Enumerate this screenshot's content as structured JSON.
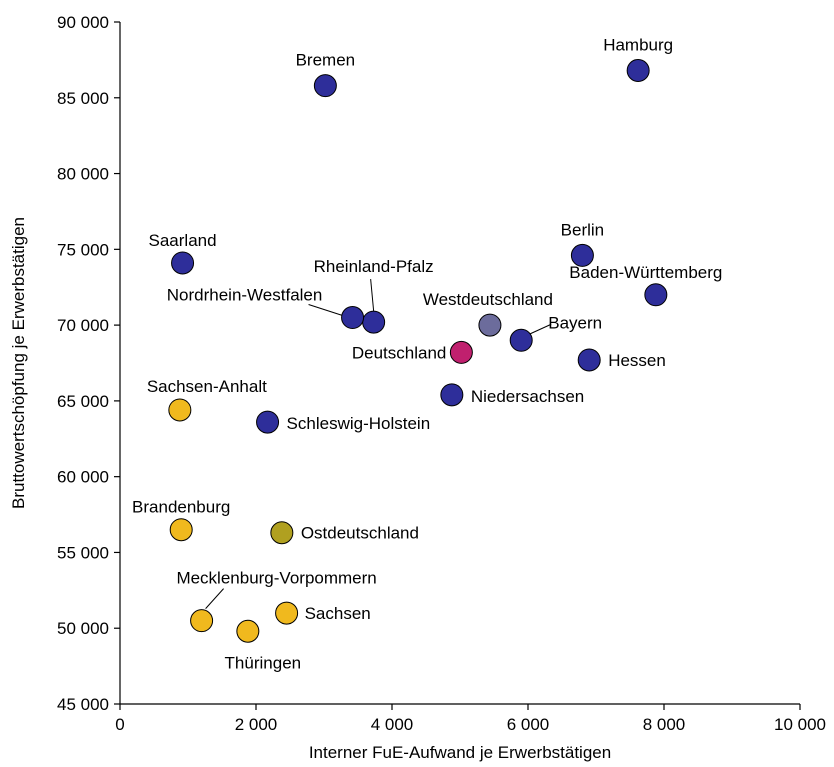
{
  "chart_data": {
    "type": "scatter",
    "title": "",
    "xlabel": "Interner FuE-Aufwand je Erwerbstätigen",
    "ylabel": "Bruttowertschöpfung je Erwerbstätigen",
    "xlim": [
      0,
      10000
    ],
    "ylim": [
      45000,
      90000
    ],
    "x_ticks": [
      0,
      2000,
      4000,
      6000,
      8000,
      10000
    ],
    "x_tick_labels": [
      "0",
      "2 000",
      "4 000",
      "6 000",
      "8 000",
      "10 000"
    ],
    "y_ticks": [
      45000,
      50000,
      55000,
      60000,
      65000,
      70000,
      75000,
      80000,
      85000,
      90000
    ],
    "y_tick_labels": [
      "45 000",
      "50 000",
      "55 000",
      "60 000",
      "65 000",
      "70 000",
      "75 000",
      "80 000",
      "85 000",
      "90 000"
    ],
    "grid": false,
    "legend": "none",
    "colors": {
      "west": "#2e2e9a",
      "east": "#f0b91e",
      "germany": "#c0206e",
      "west_avg": "#6c6c9c",
      "east_avg": "#b0a020"
    },
    "points": [
      {
        "label": "Hamburg",
        "x": 7620,
        "y": 86800,
        "group": "west"
      },
      {
        "label": "Bremen",
        "x": 3020,
        "y": 85800,
        "group": "west"
      },
      {
        "label": "Saarland",
        "x": 920,
        "y": 74100,
        "group": "west"
      },
      {
        "label": "Berlin",
        "x": 6800,
        "y": 74600,
        "group": "west"
      },
      {
        "label": "Baden-Württemberg",
        "x": 7880,
        "y": 72000,
        "group": "west"
      },
      {
        "label": "Rheinland-Pfalz",
        "x": 3730,
        "y": 70200,
        "group": "west"
      },
      {
        "label": "Nordrhein-Westfalen",
        "x": 3420,
        "y": 70500,
        "group": "west"
      },
      {
        "label": "Westdeutschland",
        "x": 5440,
        "y": 70000,
        "group": "west_avg"
      },
      {
        "label": "Bayern",
        "x": 5900,
        "y": 69000,
        "group": "west"
      },
      {
        "label": "Deutschland",
        "x": 5020,
        "y": 68200,
        "group": "germany"
      },
      {
        "label": "Hessen",
        "x": 6900,
        "y": 67700,
        "group": "west"
      },
      {
        "label": "Niedersachsen",
        "x": 4880,
        "y": 65400,
        "group": "west"
      },
      {
        "label": "Schleswig-Holstein",
        "x": 2170,
        "y": 63600,
        "group": "west"
      },
      {
        "label": "Sachsen-Anhalt",
        "x": 880,
        "y": 64400,
        "group": "east"
      },
      {
        "label": "Brandenburg",
        "x": 900,
        "y": 56500,
        "group": "east"
      },
      {
        "label": "Ostdeutschland",
        "x": 2380,
        "y": 56300,
        "group": "east_avg"
      },
      {
        "label": "Mecklenburg-Vorpommern",
        "x": 1200,
        "y": 50500,
        "group": "east"
      },
      {
        "label": "Sachsen",
        "x": 2450,
        "y": 51000,
        "group": "east"
      },
      {
        "label": "Thüringen",
        "x": 1880,
        "y": 49800,
        "group": "east"
      }
    ]
  }
}
